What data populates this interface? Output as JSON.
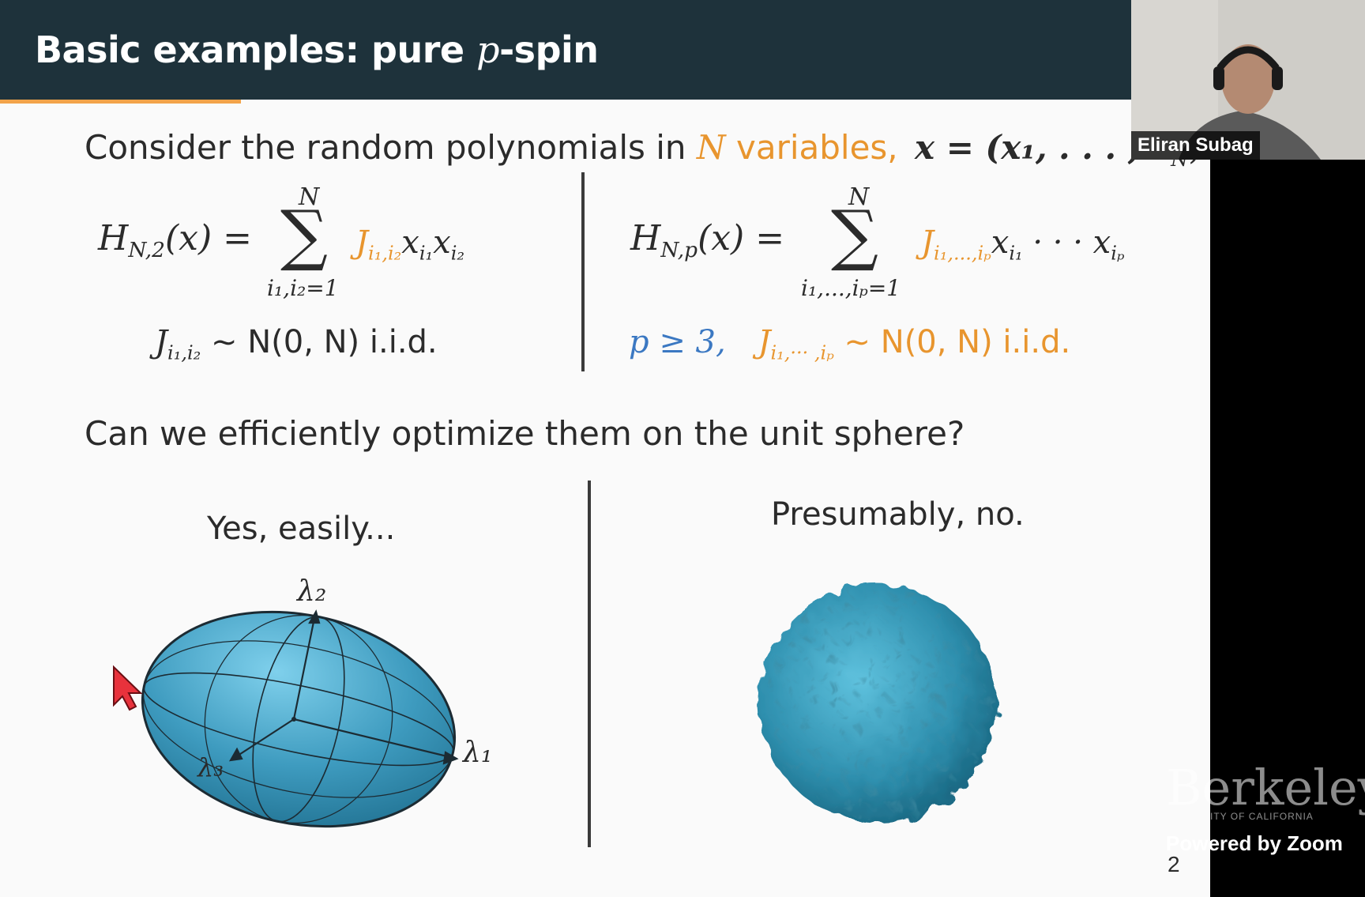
{
  "slide": {
    "title_main": "Basic examples: pure ",
    "title_var": "p",
    "title_tail": "-spin",
    "intro_1": "Consider the random polynomials in ",
    "intro_N": "N",
    "intro_variables": " variables,",
    "intro_vec": "x = (x₁, . . . , x",
    "intro_vec_sub": "N",
    "intro_end": "):",
    "left_H": "H",
    "left_H_sub": "N,2",
    "left_H_arg": "(x) =",
    "left_sum_top": "N",
    "left_sum_bot": "i₁,i₂=1",
    "left_term_J": "J",
    "left_term_J_sub": "i₁,i₂",
    "left_term_x": "x",
    "left_term_x1_sub": "i₁",
    "left_term_x2_sub": "i₂",
    "left_dist_J": "J",
    "left_dist_J_sub": "i₁,i₂",
    "left_dist_rest": "∼ N(0, N)  i.i.d.",
    "right_H": "H",
    "right_H_sub": "N,p",
    "right_H_arg": "(x) =",
    "right_sum_top": "N",
    "right_sum_bot": "i₁,...,iₚ=1",
    "right_term_J": "J",
    "right_term_J_sub": "i₁,...,iₚ",
    "right_term_x": "x",
    "right_term_x1_sub": "i₁",
    "right_term_dots": "· · · x",
    "right_term_xp_sub": "iₚ",
    "right_p_cond": "p ≥ 3,",
    "right_dist_J": "J",
    "right_dist_J_sub": "i₁,··· ,iₚ",
    "right_dist_rest": "∼ N(0, N)  i.i.d.",
    "question": "Can we efficiently optimize them on the unit sphere?",
    "left_caption": "Yes, easily...",
    "right_caption": "Presumably, no.",
    "lambda1": "λ₁",
    "lambda2": "λ₂",
    "lambda3": "λ₃",
    "page_number": "2"
  },
  "video": {
    "participant_name": "Eliran Subag",
    "watermark_main": "Berkeley",
    "watermark_sub": "ITY OF CALIFORNIA",
    "powered_by": "Powered by Zoom"
  },
  "colors": {
    "title_bar": "#1e323b",
    "accent": "#f2a34a",
    "orange_text": "#e8952e",
    "blue_text": "#3b78c2",
    "ellipsoid": "#3e9bbf",
    "rough_sphere": "#2e8fae"
  }
}
